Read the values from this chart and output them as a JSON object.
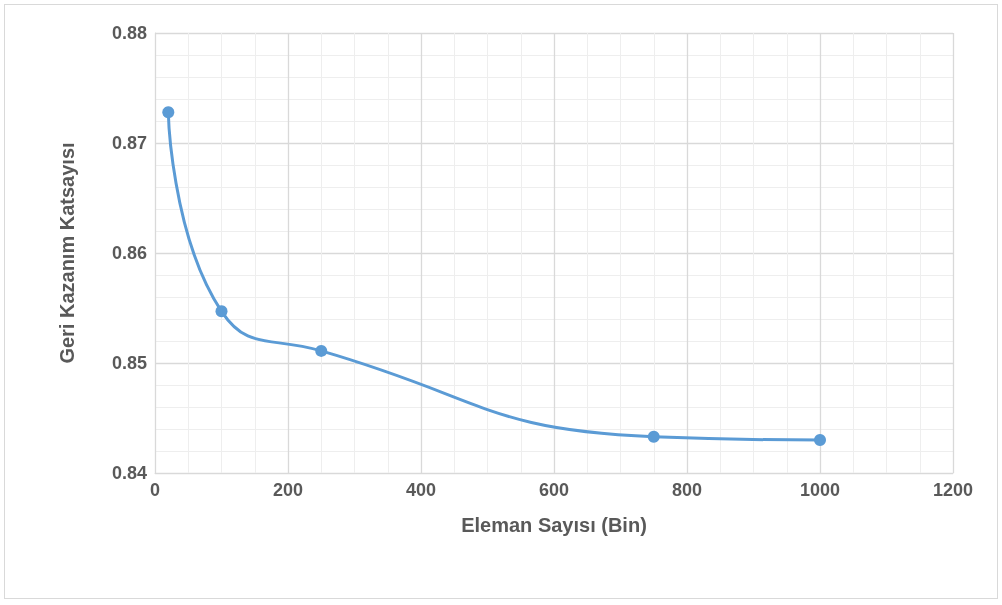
{
  "chart_data": {
    "type": "line",
    "xlabel": "Eleman Sayısı (Bin)",
    "ylabel": "Geri Kazanım Katsayısı",
    "x": [
      20,
      100,
      250,
      750,
      1000
    ],
    "series": [
      {
        "color": "#5b9bd5",
        "values": [
          0.8728,
          0.8547,
          0.8511,
          0.8433,
          0.843
        ]
      }
    ],
    "xlim": [
      0,
      1200
    ],
    "xticks": [
      0,
      200,
      400,
      600,
      800,
      1000,
      1200
    ],
    "ylim": [
      0.84,
      0.88
    ],
    "yticks": [
      0.84,
      0.85,
      0.86,
      0.87,
      0.88
    ],
    "grid": true,
    "marker": "circle",
    "line_style": "solid"
  }
}
